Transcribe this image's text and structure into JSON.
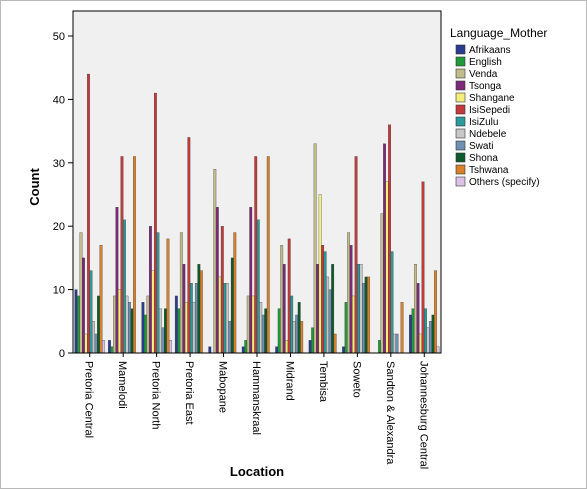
{
  "chart_data": {
    "type": "bar",
    "xlabel": "Location",
    "ylabel": "Count",
    "ylim": [
      0,
      50
    ],
    "yticks": [
      0,
      10,
      20,
      30,
      40,
      50
    ],
    "grid": false,
    "legend_title": "Language_Mother",
    "legend_position": "right",
    "categories": [
      "Pretoria Central",
      "Mamelodi",
      "Pretoria North",
      "Pretoria East",
      "Mabopane",
      "Hammanskraal",
      "Midrand",
      "Tembisa",
      "Soweto",
      "Sandton & Alexandra",
      "Johannesburg Central"
    ],
    "series": [
      {
        "name": "Afrikaans",
        "color": "#2b3c8e",
        "values": [
          10,
          2,
          8,
          9,
          1,
          1,
          1,
          2,
          1,
          0,
          6
        ]
      },
      {
        "name": "English",
        "color": "#1f9a3a",
        "values": [
          9,
          1,
          6,
          7,
          0,
          2,
          7,
          4,
          8,
          2,
          7
        ]
      },
      {
        "name": "Venda",
        "color": "#c2bb8b",
        "values": [
          19,
          9,
          9,
          19,
          29,
          9,
          17,
          33,
          19,
          22,
          14
        ]
      },
      {
        "name": "Tsonga",
        "color": "#7b2a7a",
        "values": [
          15,
          23,
          20,
          14,
          23,
          23,
          14,
          14,
          17,
          33,
          11
        ]
      },
      {
        "name": "Shangane",
        "color": "#f5ee7a",
        "values": [
          3,
          10,
          13,
          8,
          12,
          9,
          2,
          25,
          9,
          27,
          3
        ]
      },
      {
        "name": "IsiSepedi",
        "color": "#c23a3a",
        "values": [
          44,
          31,
          41,
          34,
          20,
          31,
          18,
          17,
          31,
          36,
          27
        ]
      },
      {
        "name": "IsiZulu",
        "color": "#2a9a9a",
        "values": [
          13,
          21,
          19,
          11,
          11,
          21,
          9,
          16,
          14,
          16,
          7
        ]
      },
      {
        "name": "Ndebele",
        "color": "#c8c8c8",
        "values": [
          5,
          9,
          7,
          8,
          11,
          8,
          5,
          12,
          14,
          3,
          4
        ]
      },
      {
        "name": "Swati",
        "color": "#6f8fb3",
        "values": [
          3,
          8,
          4,
          11,
          5,
          6,
          6,
          10,
          11,
          3,
          5
        ]
      },
      {
        "name": "Shona",
        "color": "#0f5a2a",
        "values": [
          9,
          7,
          7,
          14,
          15,
          7,
          8,
          14,
          12,
          0,
          6
        ]
      },
      {
        "name": "Tshwana",
        "color": "#d9802a",
        "values": [
          17,
          31,
          18,
          13,
          19,
          31,
          5,
          3,
          12,
          8,
          13
        ]
      },
      {
        "name": "Others (specify)",
        "color": "#dcc1e6",
        "values": [
          2,
          0,
          2,
          0,
          0,
          0,
          0,
          0,
          0,
          0,
          1
        ]
      }
    ]
  }
}
